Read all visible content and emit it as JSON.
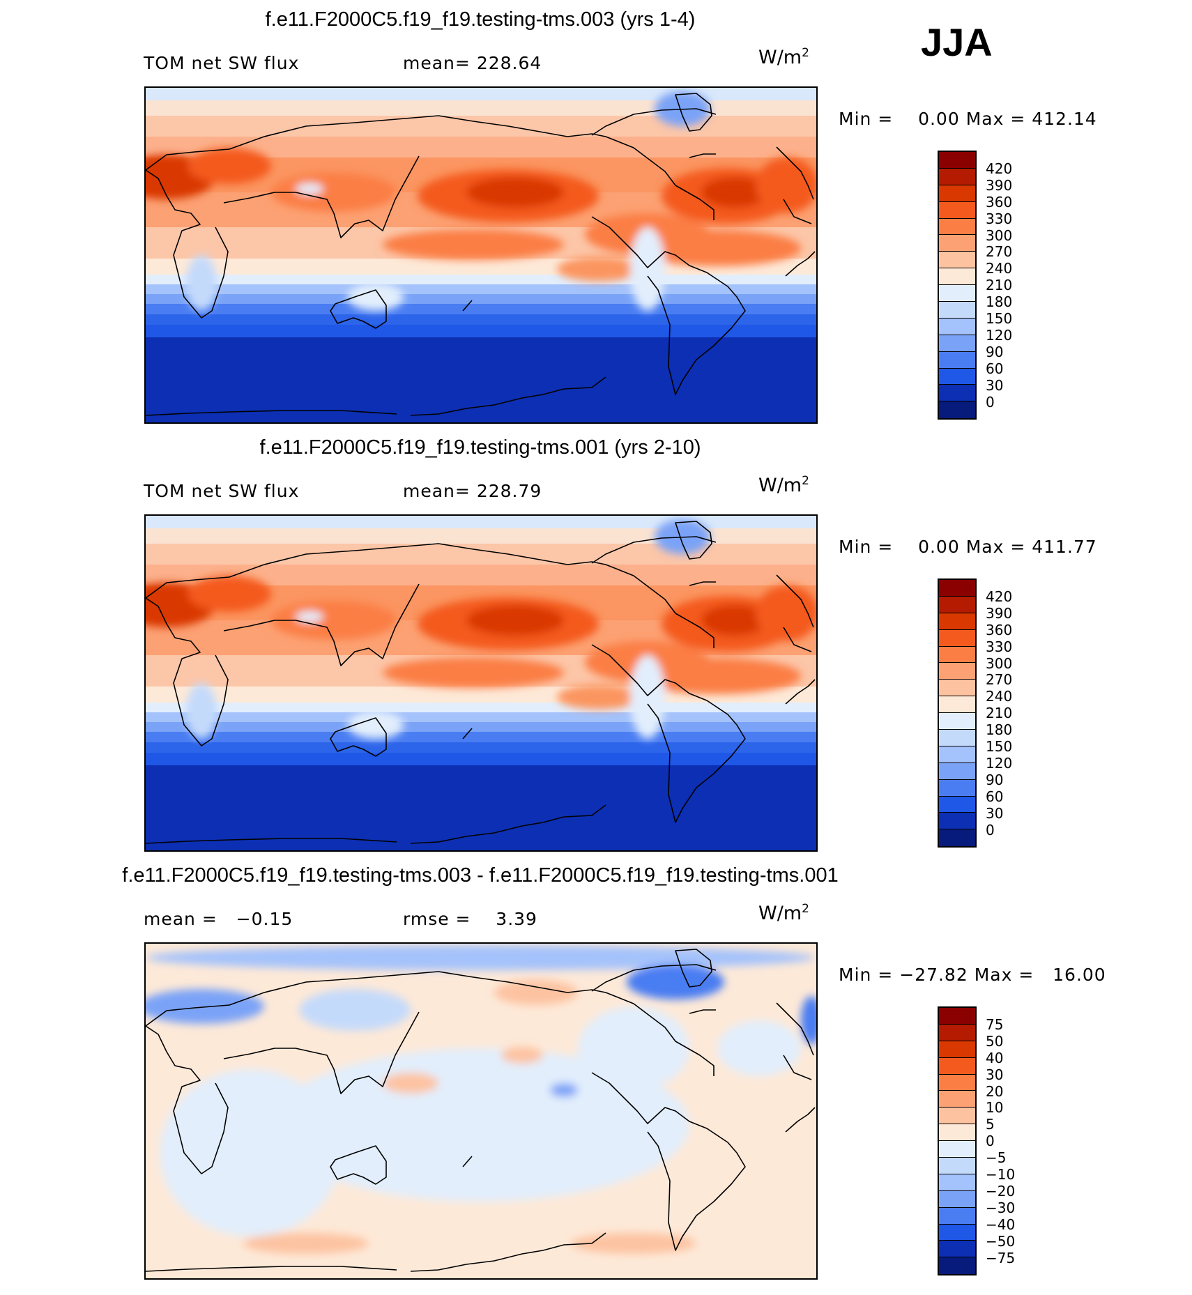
{
  "season": "JJA",
  "panels": [
    {
      "title": "f.e11.F2000C5.f19_f19.testing-tms.003 (yrs 1-4)",
      "left_label": "TOM net SW flux",
      "stat_label": "mean=",
      "stat_value": "228.64",
      "units": "W/m",
      "units_exp": "2",
      "min_label": "Min =",
      "min_value": "0.00",
      "max_label": "Max =",
      "max_value": "412.14",
      "chart_data": {
        "type": "heatmap",
        "projection": "global cylindrical equidistant, Pacific-centred",
        "variable": "TOM net SW flux",
        "colorbar_levels": [
          "420",
          "390",
          "360",
          "330",
          "300",
          "270",
          "240",
          "210",
          "180",
          "150",
          "120",
          "90",
          "60",
          "30",
          "0"
        ],
        "colorbar_colors": [
          "#8b0000",
          "#b51b00",
          "#d93800",
          "#f45a1e",
          "#fb7e45",
          "#fca173",
          "#fdc3a1",
          "#fde9d8",
          "#e2eefc",
          "#c4dafb",
          "#a4c2fb",
          "#7aa3f7",
          "#4a7df2",
          "#1f57e6",
          "#0c2fb3",
          "#071b7c"
        ]
      }
    },
    {
      "title": "f.e11.F2000C5.f19_f19.testing-tms.001 (yrs 2-10)",
      "left_label": "TOM net SW flux",
      "stat_label": "mean=",
      "stat_value": "228.79",
      "units": "W/m",
      "units_exp": "2",
      "min_label": "Min =",
      "min_value": "0.00",
      "max_label": "Max =",
      "max_value": "411.77",
      "chart_data": {
        "type": "heatmap",
        "projection": "global cylindrical equidistant, Pacific-centred",
        "variable": "TOM net SW flux",
        "colorbar_levels": [
          "420",
          "390",
          "360",
          "330",
          "300",
          "270",
          "240",
          "210",
          "180",
          "150",
          "120",
          "90",
          "60",
          "30",
          "0"
        ],
        "colorbar_colors": [
          "#8b0000",
          "#b51b00",
          "#d93800",
          "#f45a1e",
          "#fb7e45",
          "#fca173",
          "#fdc3a1",
          "#fde9d8",
          "#e2eefc",
          "#c4dafb",
          "#a4c2fb",
          "#7aa3f7",
          "#4a7df2",
          "#1f57e6",
          "#0c2fb3",
          "#071b7c"
        ]
      }
    },
    {
      "title": "f.e11.F2000C5.f19_f19.testing-tms.003 - f.e11.F2000C5.f19_f19.testing-tms.001",
      "left_label": "mean =",
      "left_value": "−0.15",
      "stat_label": "rmse =",
      "stat_value": "3.39",
      "units": "W/m",
      "units_exp": "2",
      "min_label": "Min =",
      "min_value": "−27.82",
      "max_label": "Max =",
      "max_value": "16.00",
      "chart_data": {
        "type": "heatmap",
        "projection": "global cylindrical equidistant, Pacific-centred",
        "variable": "difference in TOM net SW flux",
        "colorbar_levels": [
          "75",
          "50",
          "40",
          "30",
          "20",
          "10",
          "5",
          "0",
          "−5",
          "−10",
          "−20",
          "−30",
          "−40",
          "−50",
          "−75"
        ],
        "colorbar_colors": [
          "#8b0000",
          "#b51b00",
          "#d93800",
          "#f45a1e",
          "#fb7e45",
          "#fca173",
          "#fdc3a1",
          "#fde9d8",
          "#e2eefc",
          "#c4dafb",
          "#a4c2fb",
          "#7aa3f7",
          "#4a7df2",
          "#1f57e6",
          "#0c2fb3",
          "#071b7c"
        ]
      }
    }
  ]
}
